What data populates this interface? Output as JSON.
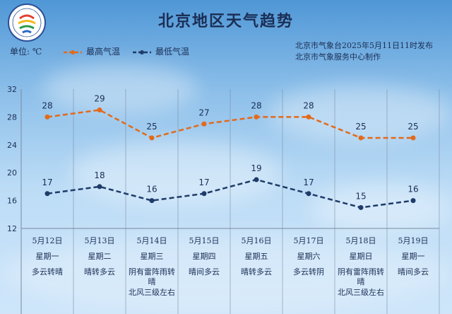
{
  "title": "北京地区天气趋势",
  "unit_label": "单位: ℃",
  "legend": {
    "high": "最高气温",
    "low": "最低气温"
  },
  "source_lines": [
    "北京市气象台2025年5月11日11时发布",
    "北京市气象服务中心制作"
  ],
  "colors": {
    "high": "#e26a1b",
    "low": "#1f3b6a",
    "text": "#1b2e55",
    "grid": "#7a8aa0"
  },
  "chart_data": {
    "type": "line",
    "categories": [
      "5月12日",
      "5月13日",
      "5月14日",
      "5月15日",
      "5月16日",
      "5月17日",
      "5月18日",
      "5月19日"
    ],
    "series": [
      {
        "name": "最高气温",
        "values": [
          28,
          29,
          25,
          27,
          28,
          28,
          25,
          25
        ]
      },
      {
        "name": "最低气温",
        "values": [
          17,
          18,
          16,
          17,
          19,
          17,
          15,
          16
        ]
      }
    ],
    "ylim": [
      12,
      32
    ],
    "yticks": [
      12,
      16,
      20,
      24,
      28,
      32
    ],
    "grid": false,
    "legend_position": "top"
  },
  "days": [
    {
      "date": "5月12日",
      "weekday": "星期一",
      "weather": "多云转晴",
      "wind": ""
    },
    {
      "date": "5月13日",
      "weekday": "星期二",
      "weather": "晴转多云",
      "wind": ""
    },
    {
      "date": "5月14日",
      "weekday": "星期三",
      "weather": "阴有雷阵雨转晴",
      "wind": "北风三级左右"
    },
    {
      "date": "5月15日",
      "weekday": "星期四",
      "weather": "晴间多云",
      "wind": ""
    },
    {
      "date": "5月16日",
      "weekday": "星期五",
      "weather": "晴转多云",
      "wind": ""
    },
    {
      "date": "5月17日",
      "weekday": "星期六",
      "weather": "多云转阴",
      "wind": ""
    },
    {
      "date": "5月18日",
      "weekday": "星期日",
      "weather": "阴有雷阵雨转晴",
      "wind": "北风三级左右"
    },
    {
      "date": "5月19日",
      "weekday": "星期一",
      "weather": "晴间多云",
      "wind": ""
    }
  ]
}
